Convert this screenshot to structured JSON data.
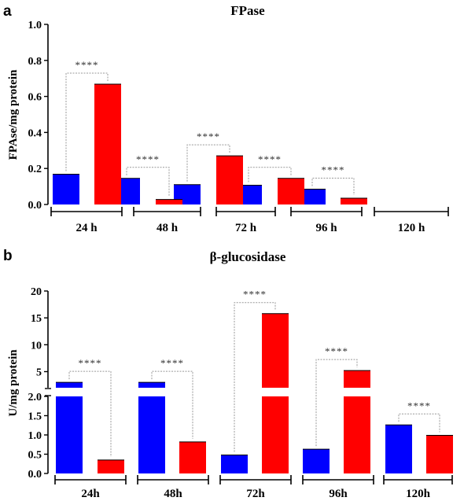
{
  "chart_data": [
    {
      "panel": "a",
      "type": "bar",
      "title": "FPase",
      "ylabel": "FPAse/mg protein",
      "ylim": [
        0,
        1.0
      ],
      "yticks": [
        "0.0",
        "0.2",
        "0.4",
        "0.6",
        "0.8",
        "1.0"
      ],
      "categories": [
        "24 h",
        "48 h",
        "72 h",
        "96 h",
        "120 h"
      ],
      "series": [
        {
          "color": "#0000ff",
          "values": [
            0.168,
            0.145,
            0.11,
            0.107,
            0.085
          ]
        },
        {
          "color": "#ff0000",
          "values": [
            0.668,
            0.028,
            0.27,
            0.145,
            0.035
          ]
        }
      ],
      "significance": [
        "****",
        "****",
        "****",
        "****",
        "****"
      ]
    },
    {
      "panel": "b",
      "type": "bar",
      "title": "β-glucosidase",
      "ylabel": "U/mg protein",
      "y_axis_break": true,
      "ylim_lower": [
        0,
        2.0
      ],
      "ylim_upper": [
        2.0,
        20
      ],
      "yticks_lower": [
        "0.0",
        "0.5",
        "1.0",
        "1.5",
        "2.0"
      ],
      "yticks_upper": [
        "5",
        "10",
        "15",
        "20"
      ],
      "categories": [
        "24h",
        "48h",
        "72h",
        "96h",
        "120h"
      ],
      "series": [
        {
          "color": "#0000ff",
          "values": [
            3.0,
            3.0,
            0.48,
            0.63,
            1.26
          ]
        },
        {
          "color": "#ff0000",
          "values": [
            0.35,
            0.82,
            15.8,
            5.2,
            0.99
          ]
        }
      ],
      "significance": [
        "****",
        "****",
        "****",
        "****",
        "****"
      ]
    }
  ]
}
